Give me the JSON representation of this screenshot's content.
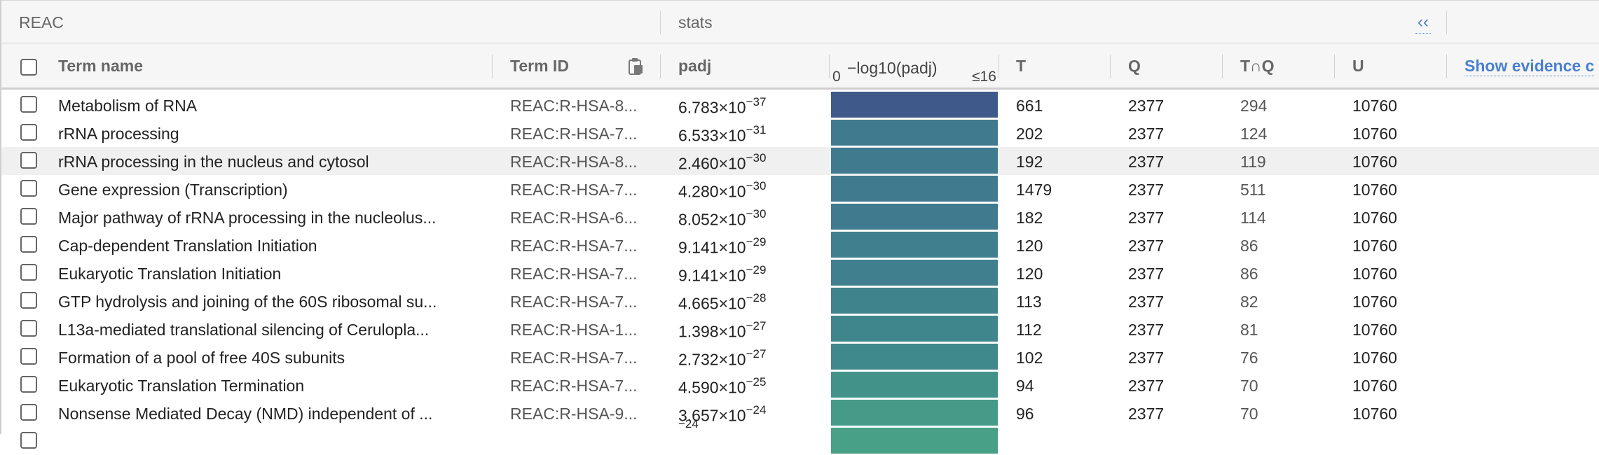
{
  "section": {
    "title": "REAC",
    "stats_title": "stats",
    "collapse_icon": "double-chevron-left-icon"
  },
  "columns": {
    "term_name": "Term name",
    "term_id": "Term ID",
    "padj": "padj",
    "neglog": "−log10(padj)",
    "axis_min": "0",
    "axis_max": "≤16",
    "t": "T",
    "q": "Q",
    "tq": "T∩Q",
    "u": "U",
    "show_evidence": "Show evidence c"
  },
  "bar_colors": [
    "#3f5a8a",
    "#3f7a8e",
    "#3f7a8e",
    "#3f7a8e",
    "#3f7a8e",
    "#3f7f8e",
    "#3f7f8e",
    "#3f838c",
    "#3f868c",
    "#3f888c",
    "#42928a",
    "#459a88",
    "#48a086"
  ],
  "rows": [
    {
      "name": "Metabolism of RNA",
      "id": "REAC:R-HSA-8...",
      "mant": "6.783",
      "exp": "-37",
      "t": "661",
      "q": "2377",
      "tq": "294",
      "u": "10760",
      "frac": 1.0
    },
    {
      "name": "rRNA processing",
      "id": "REAC:R-HSA-7...",
      "mant": "6.533",
      "exp": "-31",
      "t": "202",
      "q": "2377",
      "tq": "124",
      "u": "10760",
      "frac": 1.0
    },
    {
      "name": "rRNA processing in the nucleus and cytosol",
      "id": "REAC:R-HSA-8...",
      "mant": "2.460",
      "exp": "-30",
      "t": "192",
      "q": "2377",
      "tq": "119",
      "u": "10760",
      "frac": 1.0,
      "highlight": true
    },
    {
      "name": "Gene expression (Transcription)",
      "id": "REAC:R-HSA-7...",
      "mant": "4.280",
      "exp": "-30",
      "t": "1479",
      "q": "2377",
      "tq": "511",
      "u": "10760",
      "frac": 1.0
    },
    {
      "name": "Major pathway of rRNA processing in the nucleolus...",
      "id": "REAC:R-HSA-6...",
      "mant": "8.052",
      "exp": "-30",
      "t": "182",
      "q": "2377",
      "tq": "114",
      "u": "10760",
      "frac": 1.0
    },
    {
      "name": "Cap-dependent Translation Initiation",
      "id": "REAC:R-HSA-7...",
      "mant": "9.141",
      "exp": "-29",
      "t": "120",
      "q": "2377",
      "tq": "86",
      "u": "10760",
      "frac": 1.0
    },
    {
      "name": "Eukaryotic Translation Initiation",
      "id": "REAC:R-HSA-7...",
      "mant": "9.141",
      "exp": "-29",
      "t": "120",
      "q": "2377",
      "tq": "86",
      "u": "10760",
      "frac": 1.0
    },
    {
      "name": "GTP hydrolysis and joining of the 60S ribosomal su...",
      "id": "REAC:R-HSA-7...",
      "mant": "4.665",
      "exp": "-28",
      "t": "113",
      "q": "2377",
      "tq": "82",
      "u": "10760",
      "frac": 1.0
    },
    {
      "name": "L13a-mediated translational silencing of Ceruloplа...",
      "id": "REAC:R-HSA-1...",
      "mant": "1.398",
      "exp": "-27",
      "t": "112",
      "q": "2377",
      "tq": "81",
      "u": "10760",
      "frac": 1.0
    },
    {
      "name": "Formation of a pool of free 40S subunits",
      "id": "REAC:R-HSA-7...",
      "mant": "2.732",
      "exp": "-27",
      "t": "102",
      "q": "2377",
      "tq": "76",
      "u": "10760",
      "frac": 1.0
    },
    {
      "name": "Eukaryotic Translation Termination",
      "id": "REAC:R-HSA-7...",
      "mant": "4.590",
      "exp": "-25",
      "t": "94",
      "q": "2377",
      "tq": "70",
      "u": "10760",
      "frac": 1.0
    },
    {
      "name": "Nonsense Mediated Decay (NMD) independent of ...",
      "id": "REAC:R-HSA-9...",
      "mant": "3.657",
      "exp": "-24",
      "t": "96",
      "q": "2377",
      "tq": "70",
      "u": "10760",
      "frac": 1.0
    },
    {
      "name": "",
      "id": "",
      "mant": "",
      "exp": "-24",
      "t": "",
      "q": "",
      "tq": "",
      "u": "",
      "frac": 1.0
    }
  ]
}
